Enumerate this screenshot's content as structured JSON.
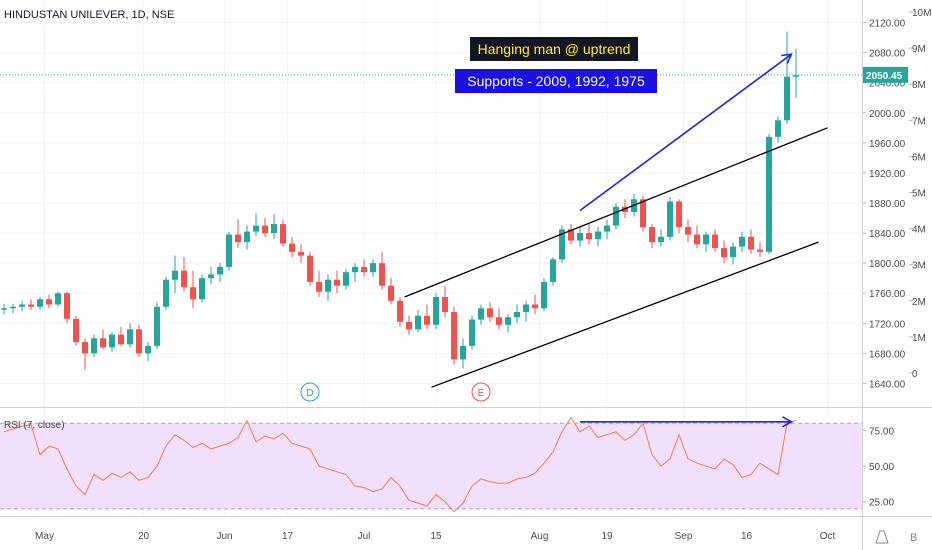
{
  "header": {
    "symbol_title": "HINDUSTAN UNILEVER, 1D, NSE"
  },
  "chart_data": [
    {
      "type": "candlestick",
      "title": "HINDUSTAN UNILEVER, 1D, NSE",
      "ylim": [
        1610,
        2150
      ],
      "price_ticks": [
        "1640.00",
        "1680.00",
        "1720.00",
        "1760.00",
        "1800.00",
        "1840.00",
        "1880.00",
        "1920.00",
        "1960.00",
        "2000.00",
        "2040.00",
        "2080.00",
        "2120.00"
      ],
      "volume_ticks": [
        "0",
        "1M",
        "2M",
        "3M",
        "4M",
        "5M",
        "6M",
        "7M",
        "8M",
        "9M",
        "10M"
      ],
      "x_ticks": [
        "May",
        "20",
        "Jun",
        "17",
        "Jul",
        "15",
        "Aug",
        "19",
        "Sep",
        "16",
        "Oct"
      ],
      "current_price": "2050.45",
      "current_price_value": 2050.45,
      "up_color": "#26a69a",
      "down_color": "#ef5350",
      "candles": [
        {
          "o": 1738,
          "h": 1746,
          "l": 1732,
          "c": 1740
        },
        {
          "o": 1740,
          "h": 1746,
          "l": 1733,
          "c": 1742
        },
        {
          "o": 1742,
          "h": 1750,
          "l": 1736,
          "c": 1745
        },
        {
          "o": 1745,
          "h": 1752,
          "l": 1738,
          "c": 1742
        },
        {
          "o": 1742,
          "h": 1755,
          "l": 1738,
          "c": 1752
        },
        {
          "o": 1752,
          "h": 1758,
          "l": 1740,
          "c": 1745
        },
        {
          "o": 1745,
          "h": 1762,
          "l": 1742,
          "c": 1760
        },
        {
          "o": 1760,
          "h": 1762,
          "l": 1720,
          "c": 1726
        },
        {
          "o": 1726,
          "h": 1730,
          "l": 1690,
          "c": 1695
        },
        {
          "o": 1695,
          "h": 1700,
          "l": 1658,
          "c": 1680
        },
        {
          "o": 1680,
          "h": 1705,
          "l": 1675,
          "c": 1700
        },
        {
          "o": 1700,
          "h": 1712,
          "l": 1685,
          "c": 1688
        },
        {
          "o": 1688,
          "h": 1708,
          "l": 1682,
          "c": 1705
        },
        {
          "o": 1705,
          "h": 1715,
          "l": 1690,
          "c": 1692
        },
        {
          "o": 1692,
          "h": 1720,
          "l": 1688,
          "c": 1712
        },
        {
          "o": 1712,
          "h": 1718,
          "l": 1675,
          "c": 1680
        },
        {
          "o": 1680,
          "h": 1695,
          "l": 1670,
          "c": 1690
        },
        {
          "o": 1690,
          "h": 1748,
          "l": 1686,
          "c": 1742
        },
        {
          "o": 1742,
          "h": 1782,
          "l": 1738,
          "c": 1778
        },
        {
          "o": 1778,
          "h": 1810,
          "l": 1760,
          "c": 1790
        },
        {
          "o": 1790,
          "h": 1808,
          "l": 1762,
          "c": 1768
        },
        {
          "o": 1768,
          "h": 1790,
          "l": 1740,
          "c": 1752
        },
        {
          "o": 1752,
          "h": 1785,
          "l": 1748,
          "c": 1780
        },
        {
          "o": 1780,
          "h": 1795,
          "l": 1772,
          "c": 1785
        },
        {
          "o": 1785,
          "h": 1800,
          "l": 1775,
          "c": 1795
        },
        {
          "o": 1795,
          "h": 1842,
          "l": 1790,
          "c": 1838
        },
        {
          "o": 1838,
          "h": 1858,
          "l": 1820,
          "c": 1828
        },
        {
          "o": 1828,
          "h": 1850,
          "l": 1818,
          "c": 1842
        },
        {
          "o": 1842,
          "h": 1866,
          "l": 1836,
          "c": 1850
        },
        {
          "o": 1850,
          "h": 1860,
          "l": 1835,
          "c": 1840
        },
        {
          "o": 1840,
          "h": 1865,
          "l": 1832,
          "c": 1852
        },
        {
          "o": 1852,
          "h": 1858,
          "l": 1822,
          "c": 1826
        },
        {
          "o": 1826,
          "h": 1835,
          "l": 1808,
          "c": 1815
        },
        {
          "o": 1815,
          "h": 1825,
          "l": 1800,
          "c": 1810
        },
        {
          "o": 1810,
          "h": 1815,
          "l": 1770,
          "c": 1775
        },
        {
          "o": 1775,
          "h": 1790,
          "l": 1755,
          "c": 1762
        },
        {
          "o": 1762,
          "h": 1785,
          "l": 1750,
          "c": 1778
        },
        {
          "o": 1778,
          "h": 1790,
          "l": 1760,
          "c": 1770
        },
        {
          "o": 1770,
          "h": 1792,
          "l": 1765,
          "c": 1788
        },
        {
          "o": 1788,
          "h": 1800,
          "l": 1775,
          "c": 1795
        },
        {
          "o": 1795,
          "h": 1805,
          "l": 1782,
          "c": 1788
        },
        {
          "o": 1788,
          "h": 1805,
          "l": 1782,
          "c": 1800
        },
        {
          "o": 1800,
          "h": 1815,
          "l": 1765,
          "c": 1770
        },
        {
          "o": 1770,
          "h": 1780,
          "l": 1745,
          "c": 1750
        },
        {
          "o": 1750,
          "h": 1755,
          "l": 1715,
          "c": 1722
        },
        {
          "o": 1722,
          "h": 1730,
          "l": 1705,
          "c": 1712
        },
        {
          "o": 1712,
          "h": 1738,
          "l": 1708,
          "c": 1730
        },
        {
          "o": 1730,
          "h": 1745,
          "l": 1712,
          "c": 1718
        },
        {
          "o": 1718,
          "h": 1760,
          "l": 1712,
          "c": 1755
        },
        {
          "o": 1755,
          "h": 1770,
          "l": 1728,
          "c": 1735
        },
        {
          "o": 1735,
          "h": 1742,
          "l": 1665,
          "c": 1672
        },
        {
          "o": 1672,
          "h": 1700,
          "l": 1660,
          "c": 1690
        },
        {
          "o": 1690,
          "h": 1730,
          "l": 1685,
          "c": 1725
        },
        {
          "o": 1725,
          "h": 1745,
          "l": 1718,
          "c": 1740
        },
        {
          "o": 1740,
          "h": 1748,
          "l": 1722,
          "c": 1728
        },
        {
          "o": 1728,
          "h": 1740,
          "l": 1712,
          "c": 1718
        },
        {
          "o": 1718,
          "h": 1732,
          "l": 1708,
          "c": 1728
        },
        {
          "o": 1728,
          "h": 1745,
          "l": 1720,
          "c": 1735
        },
        {
          "o": 1735,
          "h": 1750,
          "l": 1722,
          "c": 1745
        },
        {
          "o": 1745,
          "h": 1758,
          "l": 1732,
          "c": 1740
        },
        {
          "o": 1740,
          "h": 1780,
          "l": 1736,
          "c": 1775
        },
        {
          "o": 1775,
          "h": 1808,
          "l": 1770,
          "c": 1805
        },
        {
          "o": 1805,
          "h": 1850,
          "l": 1800,
          "c": 1845
        },
        {
          "o": 1845,
          "h": 1852,
          "l": 1825,
          "c": 1830
        },
        {
          "o": 1830,
          "h": 1848,
          "l": 1822,
          "c": 1840
        },
        {
          "o": 1840,
          "h": 1852,
          "l": 1825,
          "c": 1832
        },
        {
          "o": 1832,
          "h": 1848,
          "l": 1822,
          "c": 1842
        },
        {
          "o": 1842,
          "h": 1858,
          "l": 1832,
          "c": 1850
        },
        {
          "o": 1850,
          "h": 1880,
          "l": 1845,
          "c": 1875
        },
        {
          "o": 1875,
          "h": 1885,
          "l": 1860,
          "c": 1868
        },
        {
          "o": 1868,
          "h": 1892,
          "l": 1862,
          "c": 1885
        },
        {
          "o": 1885,
          "h": 1890,
          "l": 1842,
          "c": 1848
        },
        {
          "o": 1848,
          "h": 1852,
          "l": 1820,
          "c": 1828
        },
        {
          "o": 1828,
          "h": 1845,
          "l": 1822,
          "c": 1835
        },
        {
          "o": 1835,
          "h": 1888,
          "l": 1830,
          "c": 1882
        },
        {
          "o": 1882,
          "h": 1885,
          "l": 1840,
          "c": 1848
        },
        {
          "o": 1848,
          "h": 1858,
          "l": 1828,
          "c": 1838
        },
        {
          "o": 1838,
          "h": 1850,
          "l": 1820,
          "c": 1825
        },
        {
          "o": 1825,
          "h": 1842,
          "l": 1815,
          "c": 1838
        },
        {
          "o": 1838,
          "h": 1845,
          "l": 1815,
          "c": 1820
        },
        {
          "o": 1820,
          "h": 1830,
          "l": 1800,
          "c": 1808
        },
        {
          "o": 1808,
          "h": 1828,
          "l": 1798,
          "c": 1822
        },
        {
          "o": 1822,
          "h": 1842,
          "l": 1815,
          "c": 1835
        },
        {
          "o": 1835,
          "h": 1845,
          "l": 1812,
          "c": 1818
        },
        {
          "o": 1818,
          "h": 1828,
          "l": 1808,
          "c": 1815
        },
        {
          "o": 1815,
          "h": 1972,
          "l": 1812,
          "c": 1968
        },
        {
          "o": 1968,
          "h": 1995,
          "l": 1960,
          "c": 1990
        },
        {
          "o": 1990,
          "h": 2108,
          "l": 1985,
          "c": 2048
        },
        {
          "o": 2048,
          "h": 2085,
          "l": 2020,
          "c": 2050
        }
      ],
      "event_markers": [
        "D",
        "E"
      ],
      "annotations": [
        "Hanging man @ uptrend",
        "Supports - 2009, 1992, 1975"
      ],
      "channel_lines": [
        {
          "p1": {
            "i": 44.5,
            "price": 1755
          },
          "p2": {
            "i": 91.5,
            "price": 1980
          },
          "color": "#000000"
        },
        {
          "p1": {
            "i": 47.5,
            "price": 1635
          },
          "p2": {
            "i": 90.5,
            "price": 1828
          },
          "color": "#000000"
        }
      ],
      "arrows": [
        {
          "from": {
            "i": 64,
            "price": 1870
          },
          "to": {
            "i": 87.5,
            "price": 2078
          },
          "color": "#1a22e8"
        }
      ]
    },
    {
      "type": "line",
      "title": "RSI (7, close)",
      "ylim": [
        15,
        90
      ],
      "y_ticks": [
        "25.00",
        "50.00",
        "75.00"
      ],
      "bands": [
        20,
        80
      ],
      "color": "#f47c4c",
      "values": [
        74,
        76,
        78,
        79,
        58,
        64,
        62,
        48,
        36,
        30,
        44,
        40,
        45,
        42,
        46,
        40,
        42,
        50,
        64,
        72,
        68,
        63,
        66,
        62,
        64,
        66,
        70,
        82,
        67,
        71,
        69,
        73,
        66,
        64,
        62,
        50,
        48,
        46,
        44,
        36,
        35,
        32,
        34,
        42,
        36,
        26,
        24,
        22,
        30,
        25,
        18,
        24,
        36,
        41,
        39,
        38,
        38,
        41,
        42,
        45,
        52,
        60,
        74,
        84,
        74,
        78,
        70,
        72,
        74,
        68,
        72,
        80,
        58,
        50,
        55,
        72,
        55,
        52,
        50,
        48,
        55,
        51,
        42,
        44,
        52,
        48,
        44,
        80,
        82
      ],
      "arrows": [
        {
          "from": {
            "i": 64,
            "v": 81
          },
          "to": {
            "i": 87.5,
            "v": 81
          },
          "color": "#1a22e8"
        }
      ]
    }
  ]
}
